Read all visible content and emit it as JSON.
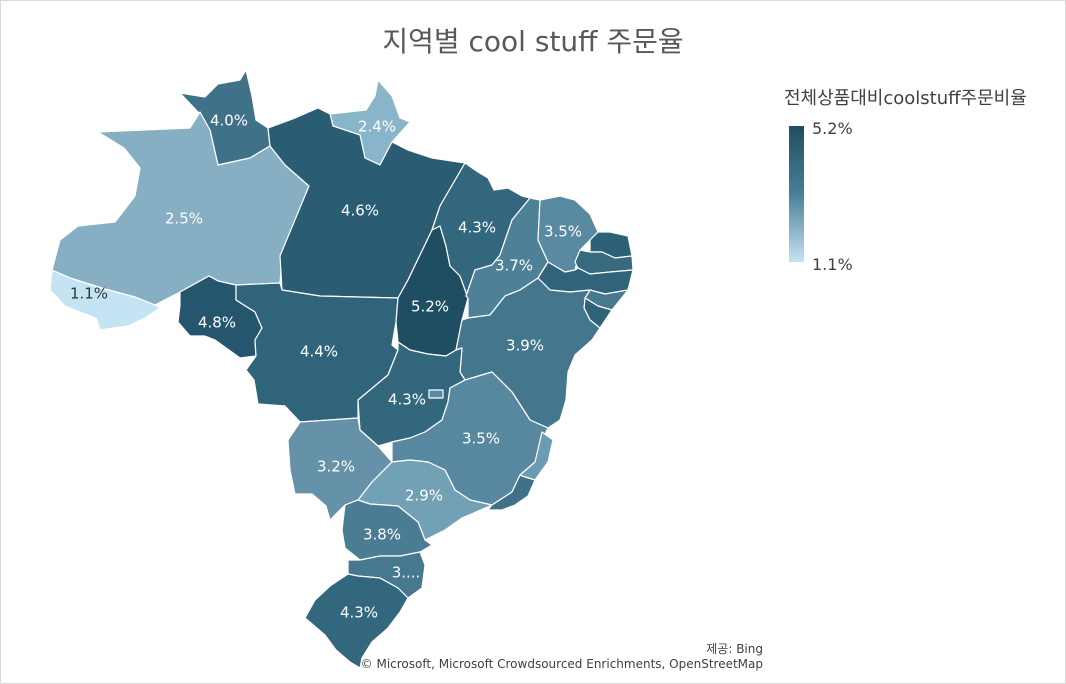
{
  "title": "지역별 cool stuff 주문율",
  "legend": {
    "title": "전체상품대비coolstuff주문비율",
    "max_label": "5.2%",
    "min_label": "1.1%",
    "color_max": "#1f4e63",
    "color_min": "#c5e4f3"
  },
  "credits": {
    "provider": "제공: Bing",
    "attribution": "© Microsoft, Microsoft Crowdsourced Enrichments, OpenStreetMap"
  },
  "regions": [
    {
      "id": "roraima",
      "label": "4.0%",
      "value": 4.0,
      "color": "#3f7189"
    },
    {
      "id": "amapa",
      "label": "2.4%",
      "value": 2.4,
      "color": "#88b5c9"
    },
    {
      "id": "amazonas",
      "label": "2.5%",
      "value": 2.5,
      "color": "#86afc3"
    },
    {
      "id": "para",
      "label": "4.6%",
      "value": 4.6,
      "color": "#2a5d74"
    },
    {
      "id": "acre",
      "label": "1.1%",
      "value": 1.1,
      "color": "#c5e4f3"
    },
    {
      "id": "rondonia",
      "label": "4.8%",
      "value": 4.8,
      "color": "#26566d"
    },
    {
      "id": "mato-grosso",
      "label": "4.4%",
      "value": 4.4,
      "color": "#30647b"
    },
    {
      "id": "tocantins",
      "label": "5.2%",
      "value": 5.2,
      "color": "#1f4e63"
    },
    {
      "id": "maranhao",
      "label": "4.3%",
      "value": 4.3,
      "color": "#33677e"
    },
    {
      "id": "piaui",
      "label": "3.7%",
      "value": 3.7,
      "color": "#4e8098"
    },
    {
      "id": "ceara",
      "label": "3.5%",
      "value": 3.5,
      "color": "#5a8aa1"
    },
    {
      "id": "rio-grande-do-norte",
      "label": "",
      "value": 4.5,
      "color": "#2e6178"
    },
    {
      "id": "paraiba",
      "label": "",
      "value": 4.2,
      "color": "#37697f"
    },
    {
      "id": "pernambuco",
      "label": "",
      "value": 4.4,
      "color": "#31647b"
    },
    {
      "id": "alagoas",
      "label": "",
      "value": 3.9,
      "color": "#46788f"
    },
    {
      "id": "sergipe",
      "label": "",
      "value": 4.4,
      "color": "#30637a"
    },
    {
      "id": "bahia",
      "label": "3.9%",
      "value": 3.9,
      "color": "#44768e"
    },
    {
      "id": "goias",
      "label": "4.3%",
      "value": 4.3,
      "color": "#33677e"
    },
    {
      "id": "distrito-federal",
      "label": "",
      "value": 3.5,
      "color": "#5a8aa1"
    },
    {
      "id": "minas-gerais",
      "label": "3.5%",
      "value": 3.5,
      "color": "#58889f"
    },
    {
      "id": "espirito-santo",
      "label": "",
      "value": 3.0,
      "color": "#6d9bb1"
    },
    {
      "id": "mato-grosso-do-sul",
      "label": "3.2%",
      "value": 3.2,
      "color": "#6592a9"
    },
    {
      "id": "sao-paulo",
      "label": "2.9%",
      "value": 2.9,
      "color": "#72a0b5"
    },
    {
      "id": "rio-de-janeiro",
      "label": "",
      "value": 4.0,
      "color": "#3f7189"
    },
    {
      "id": "parana",
      "label": "3.8%",
      "value": 3.8,
      "color": "#4a7c93"
    },
    {
      "id": "santa-catarina",
      "label": "3....",
      "value": 3.9,
      "color": "#46788f"
    },
    {
      "id": "rio-grande-do-sul",
      "label": "4.3%",
      "value": 4.3,
      "color": "#33677e"
    }
  ]
}
